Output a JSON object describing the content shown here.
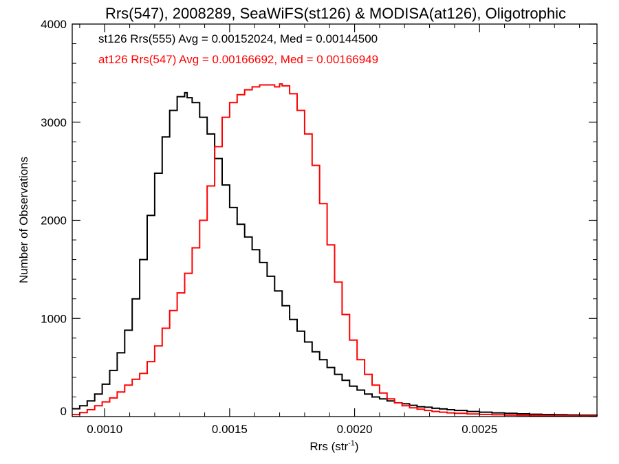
{
  "chart_data": {
    "type": "line",
    "title": "Rrs(547), 2008289, SeaWiFS(st126) & MODISA(at126), Oligotrophic",
    "xlabel_base": "Rrs (str",
    "xlabel_sup": "-1",
    "xlabel_end": ")",
    "ylabel": "Number of Observations",
    "xlim": [
      0.00087,
      0.00297
    ],
    "ylim": [
      0,
      4000
    ],
    "xticks": [
      0.001,
      0.0015,
      0.002,
      0.0025
    ],
    "xtick_labels": [
      "0.0010",
      "0.0015",
      "0.0020",
      "0.0025"
    ],
    "yticks": [
      0,
      1000,
      2000,
      3000,
      4000
    ],
    "ytick_labels": [
      "0",
      "1000",
      "2000",
      "3000",
      "4000"
    ],
    "grid": false,
    "step_style": "histogram",
    "legend": [
      {
        "text": "st126 Rrs(555) Avg = 0.00152024, Med = 0.00144500",
        "color": "#000000"
      },
      {
        "text": "at126 Rrs(547) Avg = 0.00166692, Med = 0.00166949",
        "color": "#ff0000"
      }
    ],
    "series": [
      {
        "color": "#000000",
        "x": [
          0.00087,
          0.0009,
          0.00093,
          0.00096,
          0.00099,
          0.00102,
          0.00105,
          0.00108,
          0.00111,
          0.00114,
          0.00117,
          0.0012,
          0.00123,
          0.00126,
          0.00129,
          0.00132,
          0.00133,
          0.00135,
          0.00138,
          0.00141,
          0.00144,
          0.00147,
          0.0015,
          0.00153,
          0.00156,
          0.00159,
          0.00162,
          0.00165,
          0.00168,
          0.00171,
          0.00174,
          0.00177,
          0.0018,
          0.00183,
          0.00186,
          0.00189,
          0.00192,
          0.00195,
          0.00198,
          0.00201,
          0.00204,
          0.00207,
          0.0021,
          0.00213,
          0.00216,
          0.00219,
          0.00222,
          0.00225,
          0.00228,
          0.00231,
          0.00234,
          0.00237,
          0.0024,
          0.00245,
          0.0025,
          0.00255,
          0.0026,
          0.00265,
          0.0027,
          0.00275,
          0.0028,
          0.00285,
          0.0029,
          0.00297
        ],
        "y": [
          80,
          110,
          160,
          230,
          330,
          470,
          650,
          880,
          1200,
          1600,
          2050,
          2480,
          2850,
          3120,
          3260,
          3300,
          3250,
          3200,
          3050,
          2880,
          2630,
          2360,
          2130,
          1960,
          1830,
          1700,
          1570,
          1430,
          1280,
          1130,
          990,
          870,
          760,
          660,
          580,
          500,
          430,
          370,
          310,
          270,
          230,
          200,
          180,
          160,
          140,
          130,
          115,
          100,
          95,
          85,
          78,
          70,
          62,
          52,
          45,
          38,
          33,
          28,
          24,
          21,
          18,
          16,
          14,
          12
        ]
      },
      {
        "color": "#ff0000",
        "x": [
          0.00087,
          0.0009,
          0.00093,
          0.00096,
          0.00099,
          0.00102,
          0.00105,
          0.00108,
          0.00111,
          0.00114,
          0.00117,
          0.0012,
          0.00123,
          0.00126,
          0.00129,
          0.00132,
          0.00135,
          0.00138,
          0.00141,
          0.00144,
          0.00147,
          0.0015,
          0.00153,
          0.00156,
          0.00159,
          0.00162,
          0.00165,
          0.00168,
          0.0017,
          0.00171,
          0.00174,
          0.00177,
          0.0018,
          0.00183,
          0.00186,
          0.00189,
          0.00192,
          0.00195,
          0.00198,
          0.00201,
          0.00204,
          0.00207,
          0.0021,
          0.00213,
          0.00216,
          0.00219,
          0.00222,
          0.00225,
          0.00228,
          0.00231,
          0.00234,
          0.00237,
          0.0024,
          0.00245,
          0.0025,
          0.00255,
          0.0026,
          0.00265,
          0.0027,
          0.00275,
          0.0028,
          0.00285,
          0.0029,
          0.00297
        ],
        "y": [
          20,
          40,
          70,
          110,
          150,
          190,
          250,
          320,
          380,
          440,
          560,
          720,
          900,
          1080,
          1260,
          1460,
          1720,
          2000,
          2350,
          2750,
          3050,
          3200,
          3280,
          3330,
          3360,
          3380,
          3380,
          3360,
          3390,
          3370,
          3290,
          3120,
          2880,
          2560,
          2170,
          1750,
          1370,
          1040,
          780,
          580,
          430,
          320,
          240,
          180,
          140,
          110,
          90,
          75,
          62,
          52,
          45,
          38,
          33,
          26,
          22,
          18,
          15,
          12,
          10,
          8,
          7,
          6,
          5,
          4
        ]
      }
    ]
  }
}
